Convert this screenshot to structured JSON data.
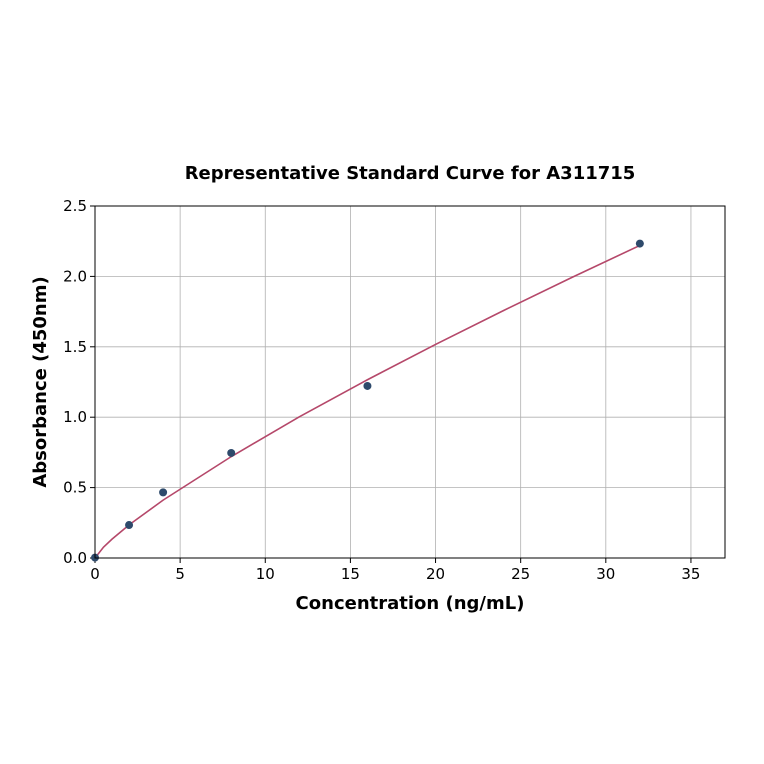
{
  "chart_data": {
    "type": "scatter",
    "title": "Representative Standard Curve for A311715",
    "xlabel": "Concentration (ng/mL)",
    "ylabel": "Absorbance (450nm)",
    "xlim": [
      0,
      37
    ],
    "ylim": [
      0,
      2.5
    ],
    "xticks": [
      0,
      5,
      10,
      15,
      20,
      25,
      30,
      35
    ],
    "yticks": [
      0.0,
      0.5,
      1.0,
      1.5,
      2.0,
      2.5
    ],
    "ytick_labels": [
      "0.0",
      "0.5",
      "1.0",
      "1.5",
      "2.0",
      "2.5"
    ],
    "grid": true,
    "points": {
      "x": [
        0,
        2,
        4,
        8,
        16,
        32
      ],
      "y": [
        0.003,
        0.234,
        0.466,
        0.746,
        1.222,
        2.233
      ],
      "color": "#2e4a6b"
    },
    "fit_curve": {
      "x": [
        0,
        0.5,
        1,
        2,
        4,
        8,
        12,
        16,
        20,
        24,
        28,
        32
      ],
      "y": [
        0,
        0.077,
        0.134,
        0.235,
        0.411,
        0.72,
        1.003,
        1.266,
        1.517,
        1.758,
        1.992,
        2.22
      ],
      "color": "#b5486a"
    }
  }
}
